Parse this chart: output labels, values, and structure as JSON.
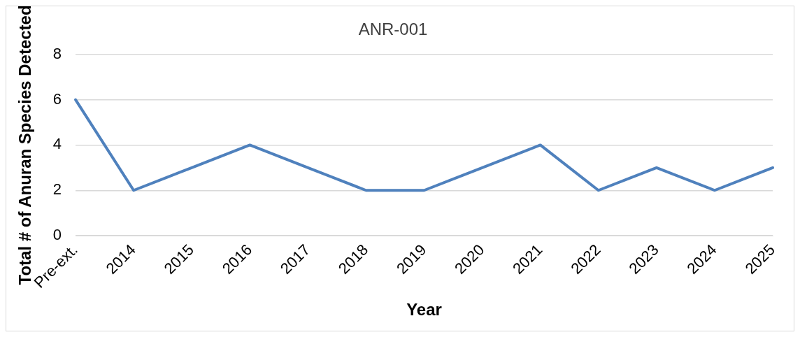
{
  "chart_data": {
    "type": "line",
    "title": "ANR-001",
    "xlabel": "Year",
    "ylabel": "Total # of Anuran Species Detected",
    "categories": [
      "Pre-ext.",
      "2014",
      "2015",
      "2016",
      "2017",
      "2018",
      "2019",
      "2020",
      "2021",
      "2022",
      "2023",
      "2024",
      "2025"
    ],
    "series": [
      {
        "color": "#4f81bd",
        "values": [
          6,
          2,
          3,
          4,
          3,
          2,
          2,
          3,
          4,
          2,
          3,
          2,
          3
        ]
      }
    ],
    "ylim": [
      0,
      8
    ],
    "yticks": [
      0,
      2,
      4,
      6,
      8
    ],
    "grid": "y",
    "legend": false,
    "marker": "none",
    "line_style": "solid"
  }
}
